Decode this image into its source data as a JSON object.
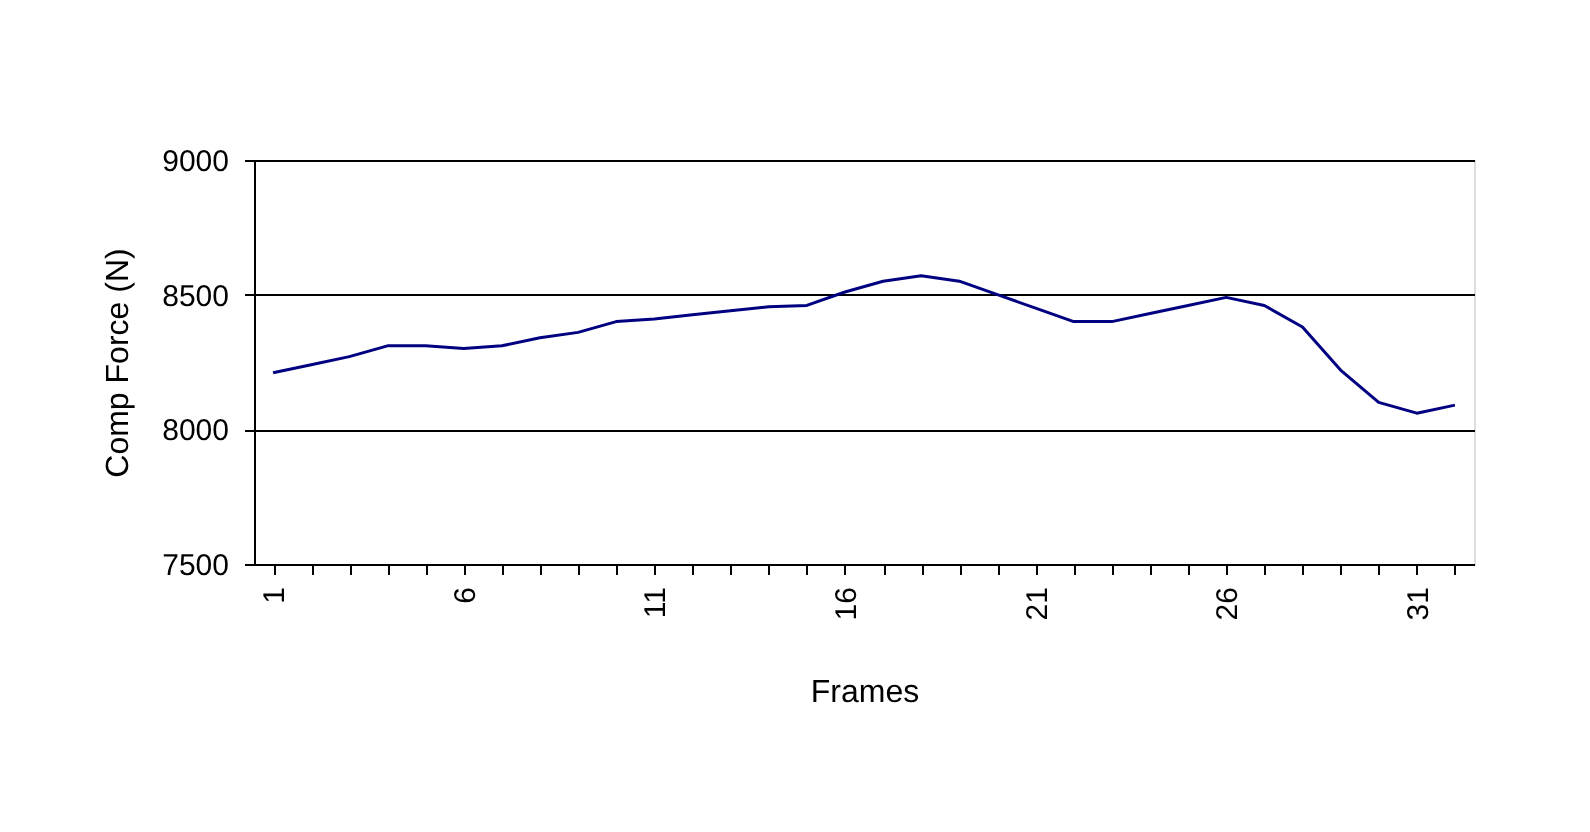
{
  "chart_data": {
    "type": "line",
    "xlabel": "Frames",
    "ylabel": "Comp Force (N)",
    "categories": [
      "1",
      null,
      null,
      null,
      null,
      "6",
      null,
      null,
      null,
      null,
      "11",
      null,
      null,
      null,
      null,
      "16",
      null,
      null,
      null,
      null,
      "21",
      null,
      null,
      null,
      null,
      "26",
      null,
      null,
      null,
      null,
      "31",
      null
    ],
    "series": [
      {
        "color": "#000080",
        "values": [
          8210,
          8240,
          8270,
          8310,
          8310,
          8300,
          8310,
          8340,
          8360,
          8400,
          8410,
          8425,
          8440,
          8455,
          8460,
          8510,
          8550,
          8570,
          8550,
          8500,
          8450,
          8400,
          8400,
          8430,
          8460,
          8490,
          8460,
          8380,
          8220,
          8100,
          8060,
          8090
        ]
      }
    ],
    "ylim": [
      7500,
      9000
    ],
    "yticks": [
      7500,
      8000,
      8500,
      9000
    ],
    "grid": "y",
    "legend": false,
    "marker": "none",
    "line_style": "solid"
  }
}
